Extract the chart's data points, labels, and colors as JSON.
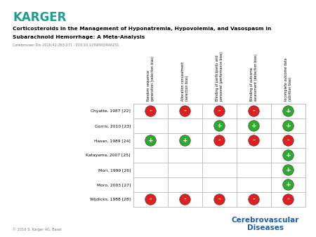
{
  "title_line1": "Corticosteroids in the Management of Hyponatremia, Hypovolemia, and Vasospasm in",
  "title_line2": "Subarachnoid Hemorrhage: A Meta-Analysis",
  "subtitle": "Cerebrovasc Dis 2016;42:263-271 · DOI:10.1159/000446251",
  "karger_text": "KARGER",
  "karger_color": "#1a9e8f",
  "col_headers": [
    "Random sequence\ngeneration (selection bias)",
    "Allocation concealment\n(selection bias)",
    "Blinding of participants and\npersonnel (performance bias)",
    "Blinding of outcome\nassessment (detection bias)",
    "Incomplete outcome data\n(attrition bias)"
  ],
  "row_labels": [
    "Chyatte, 1987 [22]",
    "Gorris, 2010 [23]",
    "Hasan, 1989 [24]",
    "Katayama, 2007 [25]",
    "Mori, 1999 [26]",
    "Moro, 2003 [27]",
    "Wijdicks, 1988 [28]"
  ],
  "grid_data": [
    [
      "-",
      "-",
      "-",
      "-",
      "+"
    ],
    [
      null,
      null,
      "+",
      "+",
      "+"
    ],
    [
      "+",
      "+",
      "-",
      "-",
      "-"
    ],
    [
      null,
      null,
      null,
      null,
      "+"
    ],
    [
      null,
      null,
      null,
      null,
      "+"
    ],
    [
      null,
      null,
      null,
      null,
      "+"
    ],
    [
      "-",
      "-",
      "-",
      "-",
      "-"
    ]
  ],
  "red_color": "#e02020",
  "green_color": "#2eaa2e",
  "footer_text": "© 2016 S. Karger AG, Basel",
  "cerebrovascular_text": "Cerebrovascular\nDiseases",
  "cerebrovascular_color": "#1a5fa8"
}
